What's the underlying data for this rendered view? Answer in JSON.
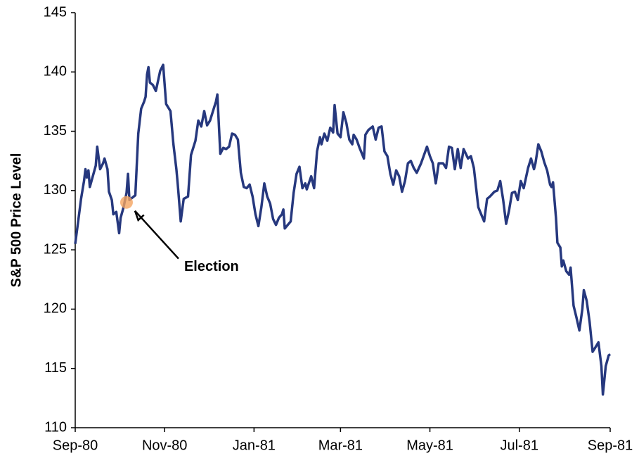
{
  "chart_data": {
    "type": "line",
    "y_label": "S&P 500 Price Level",
    "color": "#26387e",
    "x": [
      0,
      2,
      4,
      6,
      7,
      8,
      9,
      10,
      12,
      14,
      15,
      17,
      19,
      20,
      22,
      23,
      25,
      26,
      28,
      30,
      31,
      33,
      35,
      36,
      37,
      40,
      41,
      43,
      45,
      47,
      48,
      49,
      50,
      51,
      53,
      55,
      58,
      60,
      62,
      65,
      67,
      69,
      70,
      72,
      74,
      77,
      79,
      82,
      84,
      86,
      88,
      90,
      92,
      94,
      96,
      97,
      99,
      101,
      103,
      105,
      107,
      109,
      111,
      113,
      115,
      117,
      119,
      121,
      123,
      125,
      127,
      129,
      131,
      133,
      135,
      137,
      139,
      141,
      142,
      143,
      145,
      147,
      149,
      151,
      153,
      155,
      157,
      158,
      161,
      163,
      165,
      167,
      168,
      170,
      172,
      174,
      176,
      177,
      179,
      181,
      183,
      185,
      187,
      189,
      190,
      192,
      194,
      197,
      198,
      200,
      203,
      205,
      207,
      209,
      211,
      213,
      215,
      217,
      219,
      221,
      223,
      225,
      227,
      229,
      231,
      233,
      236,
      238,
      240,
      242,
      244,
      246,
      248,
      251,
      253,
      255,
      257,
      259,
      261,
      263,
      265,
      268,
      270,
      272,
      275,
      277,
      279,
      281,
      283,
      286,
      288,
      290,
      292,
      294,
      296,
      298,
      300,
      302,
      304,
      306,
      309,
      311,
      313,
      314,
      316,
      318,
      320,
      322,
      324,
      325,
      326,
      328,
      329,
      331,
      332,
      333,
      335,
      337,
      338,
      340,
      342,
      344,
      346,
      347,
      349,
      351,
      353,
      355,
      357,
      359,
      360,
      362,
      364,
      365
    ],
    "values": [
      125.5,
      127.4,
      129.3,
      130.8,
      131.8,
      131.1,
      131.7,
      130.3,
      131.2,
      132.1,
      133.7,
      131.8,
      132.3,
      132.7,
      131.8,
      129.9,
      129.2,
      128.0,
      128.2,
      126.4,
      127.7,
      128.6,
      129.8,
      131.4,
      129.2,
      129.5,
      129.6,
      134.8,
      136.9,
      137.5,
      137.9,
      139.8,
      140.4,
      139.1,
      138.9,
      138.4,
      140.1,
      140.6,
      137.3,
      136.7,
      133.9,
      131.8,
      130.5,
      127.4,
      129.3,
      129.5,
      133.0,
      134.2,
      135.9,
      135.4,
      136.7,
      135.5,
      135.9,
      136.7,
      137.5,
      138.1,
      133.1,
      133.6,
      133.5,
      133.7,
      134.8,
      134.7,
      134.3,
      131.5,
      130.3,
      130.2,
      130.5,
      129.5,
      128.0,
      127.0,
      128.6,
      130.6,
      129.5,
      128.9,
      127.6,
      127.1,
      127.7,
      128.0,
      128.4,
      126.8,
      127.1,
      127.4,
      129.8,
      131.4,
      132.0,
      130.2,
      130.6,
      130.1,
      131.2,
      130.2,
      133.3,
      134.5,
      133.9,
      134.8,
      134.2,
      135.3,
      134.9,
      137.2,
      134.8,
      134.5,
      136.6,
      135.7,
      134.3,
      133.9,
      134.7,
      134.3,
      133.6,
      132.7,
      134.7,
      135.1,
      135.4,
      134.3,
      135.3,
      135.4,
      133.3,
      132.9,
      131.4,
      130.5,
      131.7,
      131.2,
      129.9,
      130.8,
      132.3,
      132.5,
      131.9,
      131.5,
      132.3,
      133.0,
      133.7,
      132.9,
      132.3,
      130.6,
      132.3,
      132.3,
      131.9,
      133.7,
      133.6,
      131.8,
      133.5,
      131.9,
      133.5,
      132.7,
      132.9,
      131.9,
      128.6,
      128.0,
      127.4,
      129.3,
      129.5,
      129.9,
      130.0,
      130.8,
      129.2,
      127.2,
      128.3,
      129.8,
      129.9,
      129.2,
      130.8,
      130.2,
      131.9,
      132.7,
      131.8,
      132.3,
      133.9,
      133.3,
      132.4,
      131.7,
      130.5,
      130.3,
      130.7,
      127.7,
      125.6,
      125.2,
      123.6,
      124.1,
      123.2,
      122.9,
      123.5,
      120.3,
      119.3,
      118.2,
      120.0,
      121.6,
      120.7,
      118.9,
      116.4,
      116.8,
      117.2,
      115.2,
      112.8,
      115.2,
      116.1,
      116.2
    ],
    "xlim": [
      0,
      365
    ],
    "xticks": [
      {
        "value": 0,
        "label": "Sep-80"
      },
      {
        "value": 61,
        "label": "Nov-80"
      },
      {
        "value": 122,
        "label": "Jan-81"
      },
      {
        "value": 181,
        "label": "Mar-81"
      },
      {
        "value": 242,
        "label": "May-81"
      },
      {
        "value": 303,
        "label": "Jul-81"
      },
      {
        "value": 365,
        "label": "Sep-81"
      }
    ],
    "ylim": [
      110,
      145
    ],
    "yticks": [
      110,
      115,
      120,
      125,
      130,
      135,
      140,
      145
    ],
    "annotations": [
      {
        "text": "Election",
        "x": 35,
        "y": 129,
        "color": "#f4a460"
      }
    ]
  }
}
